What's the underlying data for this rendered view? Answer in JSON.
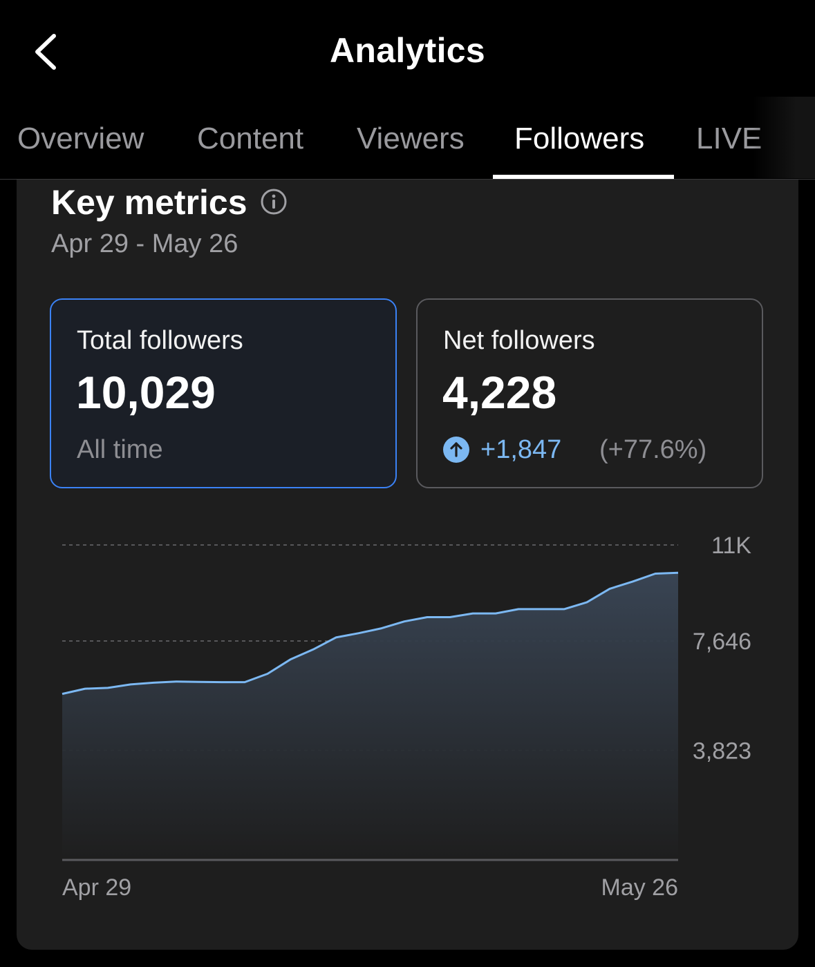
{
  "header": {
    "title": "Analytics",
    "back_icon": "chevron-left-icon"
  },
  "tabs": [
    {
      "label": "Overview",
      "active": false
    },
    {
      "label": "Content",
      "active": false
    },
    {
      "label": "Viewers",
      "active": false
    },
    {
      "label": "Followers",
      "active": true
    },
    {
      "label": "LIVE",
      "active": false
    }
  ],
  "key_metrics": {
    "title": "Key metrics",
    "info_icon": "info-icon",
    "date_range": "Apr 29 - May 26"
  },
  "metrics": {
    "total": {
      "label": "Total followers",
      "value": "10,029",
      "sub": "All time"
    },
    "net": {
      "label": "Net followers",
      "value": "4,228",
      "change_icon": "arrow-up-circle-icon",
      "change": "+1,847",
      "change_pct": "(+77.6%)"
    }
  },
  "colors": {
    "accent_blue": "#3b82f6",
    "line": "#7cb8f2",
    "background": "#000000",
    "card": "#1e1e1e"
  },
  "chart_data": {
    "type": "area",
    "title": "",
    "xlabel": "",
    "ylabel": "",
    "x_tick_labels": [
      "Apr 29",
      "May 26"
    ],
    "y_tick_labels": [
      "3,823",
      "7,646",
      "11K"
    ],
    "y_ticks": [
      3823,
      7646,
      11000
    ],
    "ylim": [
      0,
      11000
    ],
    "grid": true,
    "series": [
      {
        "values": [
          5800,
          5980,
          6010,
          6130,
          6190,
          6230,
          6220,
          6210,
          6210,
          6500,
          7000,
          7350,
          7770,
          7920,
          8090,
          8330,
          8480,
          8480,
          8610,
          8610,
          8760,
          8760,
          8760,
          9000,
          9470,
          9720,
          10000,
          10029
        ]
      }
    ]
  }
}
